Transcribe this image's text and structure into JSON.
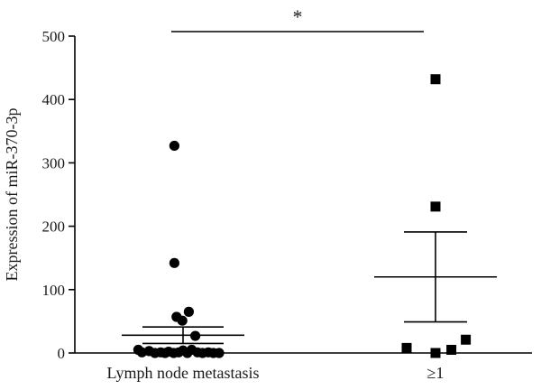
{
  "chart_data": {
    "type": "scatter",
    "ylabel": "Expression of miR-370-3p",
    "ylim": [
      0,
      500
    ],
    "yticks": [
      0,
      100,
      200,
      300,
      400,
      500
    ],
    "categories": [
      "Lymph node metastasis",
      "≥1"
    ],
    "grid": false,
    "series": [
      {
        "category": "Lymph node metastasis",
        "marker": "circle",
        "points": [
          {
            "x": -0.12,
            "y": 327
          },
          {
            "x": -0.12,
            "y": 142
          },
          {
            "x": 0.08,
            "y": 65
          },
          {
            "x": -0.09,
            "y": 57
          },
          {
            "x": -0.01,
            "y": 51
          },
          {
            "x": 0.17,
            "y": 27
          },
          {
            "x": -0.62,
            "y": 5
          },
          {
            "x": -0.57,
            "y": 1
          },
          {
            "x": -0.47,
            "y": 3
          },
          {
            "x": -0.39,
            "y": 0
          },
          {
            "x": -0.31,
            "y": 1
          },
          {
            "x": -0.25,
            "y": 0
          },
          {
            "x": -0.2,
            "y": 2
          },
          {
            "x": -0.13,
            "y": 0
          },
          {
            "x": -0.06,
            "y": 1
          },
          {
            "x": 0.0,
            "y": 4
          },
          {
            "x": 0.06,
            "y": 0
          },
          {
            "x": 0.12,
            "y": 5
          },
          {
            "x": 0.2,
            "y": 1
          },
          {
            "x": 0.27,
            "y": 0
          },
          {
            "x": 0.35,
            "y": 1
          },
          {
            "x": 0.42,
            "y": 0
          },
          {
            "x": 0.5,
            "y": 0
          }
        ],
        "mean": 28,
        "sem_lower": 15,
        "sem_upper": 41
      },
      {
        "category": "≥1",
        "marker": "square",
        "points": [
          {
            "x": 0.0,
            "y": 432
          },
          {
            "x": 0.0,
            "y": 231
          },
          {
            "x": 0.42,
            "y": 21
          },
          {
            "x": -0.4,
            "y": 8
          },
          {
            "x": 0.22,
            "y": 5
          },
          {
            "x": 0.0,
            "y": 0
          }
        ],
        "mean": 120,
        "sem_lower": 49,
        "sem_upper": 191
      }
    ],
    "annotations": [
      {
        "text": "*",
        "type": "significance-bracket",
        "between": [
          "Lymph node metastasis",
          "≥1"
        ]
      }
    ]
  },
  "colors": {
    "points": "#000000",
    "axes": "#000000",
    "text": "#1a1a1a"
  }
}
